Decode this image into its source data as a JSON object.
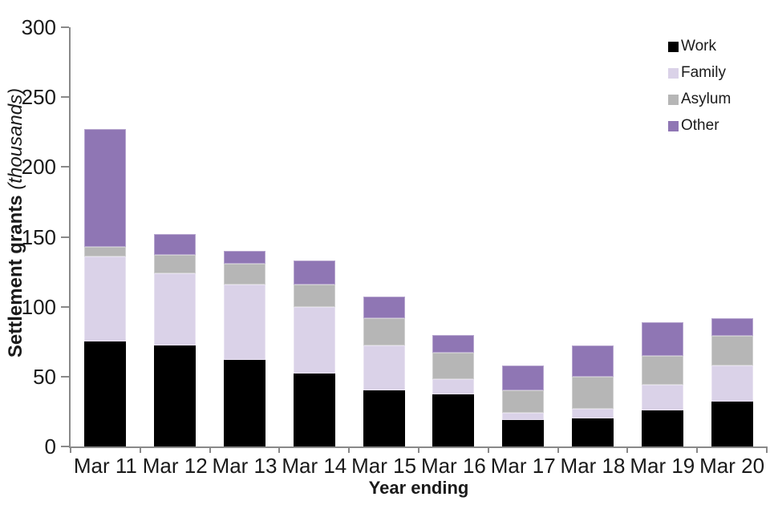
{
  "axes": {
    "y_title_bold": "Settlement grants",
    "y_title_italic": "(thousands)",
    "x_title": "Year ending",
    "y_tick_labels": [
      "0",
      "50",
      "100",
      "150",
      "200",
      "250",
      "300"
    ]
  },
  "legend": {
    "items": [
      "Work",
      "Family",
      "Asylum",
      "Other"
    ]
  },
  "colors": {
    "axis": "#898989",
    "text": "#1a1a1a",
    "work": "#000000",
    "family": "#dad2e8",
    "asylum": "#b6b6b6",
    "other": "#8f76b4"
  },
  "chart_data": {
    "type": "bar",
    "stacked": true,
    "title": "",
    "xlabel": "Year ending",
    "ylabel": "Settlement grants (thousands)",
    "ylim": [
      0,
      300
    ],
    "ytick_step": 50,
    "grid": false,
    "legend_position": "top-right",
    "categories": [
      "Mar 11",
      "Mar 12",
      "Mar 13",
      "Mar 14",
      "Mar 15",
      "Mar 16",
      "Mar 17",
      "Mar 18",
      "Mar 19",
      "Mar 20"
    ],
    "series": [
      {
        "name": "Work",
        "color": "#000000",
        "values": [
          75,
          72,
          62,
          52,
          40,
          37,
          19,
          20,
          26,
          32
        ]
      },
      {
        "name": "Family",
        "color": "#dad2e8",
        "values": [
          61,
          52,
          54,
          48,
          32,
          11,
          5,
          7,
          18,
          26
        ]
      },
      {
        "name": "Asylum",
        "color": "#b6b6b6",
        "values": [
          7,
          13,
          15,
          16,
          20,
          19,
          16,
          23,
          21,
          21
        ]
      },
      {
        "name": "Other",
        "color": "#8f76b4",
        "values": [
          84,
          15,
          9,
          17,
          15,
          13,
          18,
          22,
          24,
          13
        ]
      }
    ],
    "totals": [
      227,
      152,
      140,
      133,
      107,
      80,
      58,
      72,
      89,
      92
    ]
  }
}
